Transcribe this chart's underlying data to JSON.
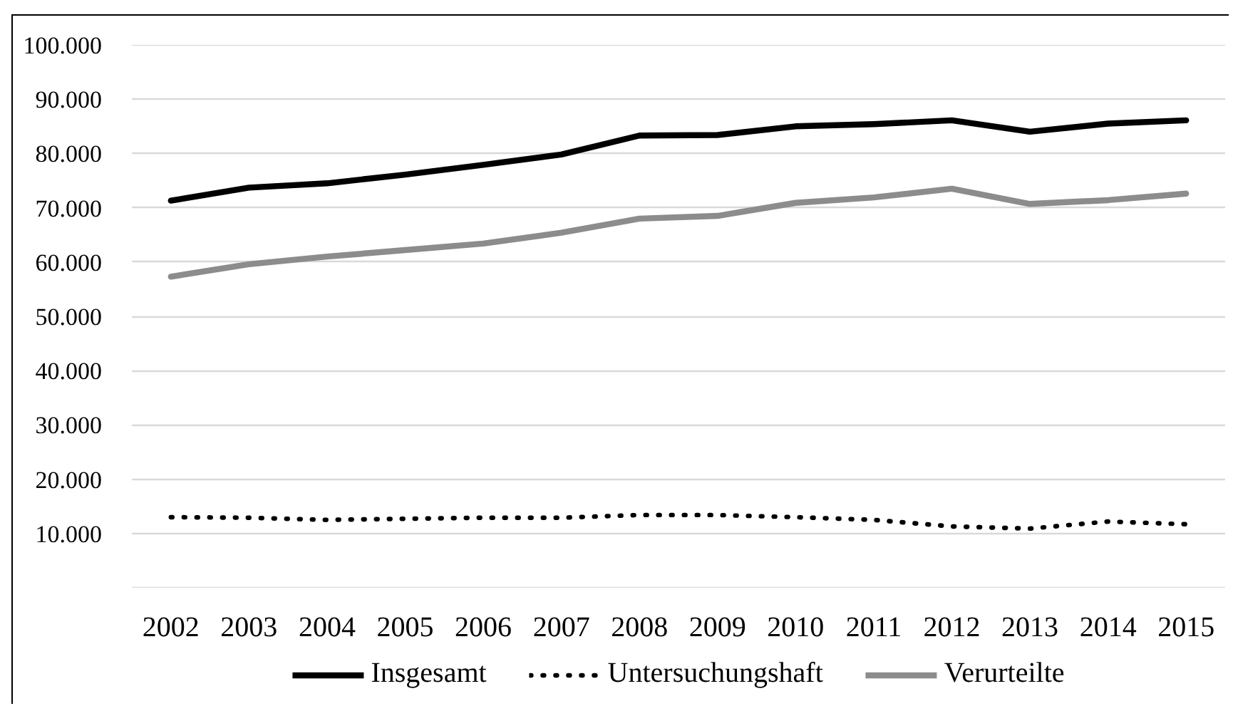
{
  "chart_data": {
    "type": "line",
    "categories": [
      "2002",
      "2003",
      "2004",
      "2005",
      "2006",
      "2007",
      "2008",
      "2009",
      "2010",
      "2011",
      "2012",
      "2013",
      "2014",
      "2015"
    ],
    "series": [
      {
        "name": "Insgesamt",
        "color": "#000000",
        "line_style": "solid",
        "values": [
          71300,
          73700,
          74500,
          76100,
          77900,
          79800,
          83300,
          83400,
          85000,
          85400,
          86100,
          84000,
          85500,
          86100
        ]
      },
      {
        "name": "Untersuchungshaft",
        "color": "#000000",
        "line_style": "dotted",
        "values": [
          13000,
          12900,
          12500,
          12700,
          12900,
          12900,
          13400,
          13400,
          13000,
          12500,
          11300,
          10900,
          12200,
          11700
        ]
      },
      {
        "name": "Verurteilte",
        "color": "#8c8c8c",
        "line_style": "solid",
        "values": [
          57300,
          59600,
          61000,
          62200,
          63400,
          65400,
          68000,
          68500,
          70900,
          71900,
          73500,
          70700,
          71400,
          72600
        ]
      }
    ],
    "ylim": [
      0,
      100000
    ],
    "yticks": [
      {
        "value": 0,
        "label": null
      },
      {
        "value": 10000,
        "label": "10.000"
      },
      {
        "value": 20000,
        "label": "20.000"
      },
      {
        "value": 30000,
        "label": "30.000"
      },
      {
        "value": 40000,
        "label": "40.000"
      },
      {
        "value": 50000,
        "label": "50.000"
      },
      {
        "value": 60000,
        "label": "60.000"
      },
      {
        "value": 70000,
        "label": "70.000"
      },
      {
        "value": 80000,
        "label": "80.000"
      },
      {
        "value": 90000,
        "label": "90.000"
      },
      {
        "value": 100000,
        "label": "100.000"
      }
    ],
    "grid": "y",
    "legend": "bottom"
  }
}
